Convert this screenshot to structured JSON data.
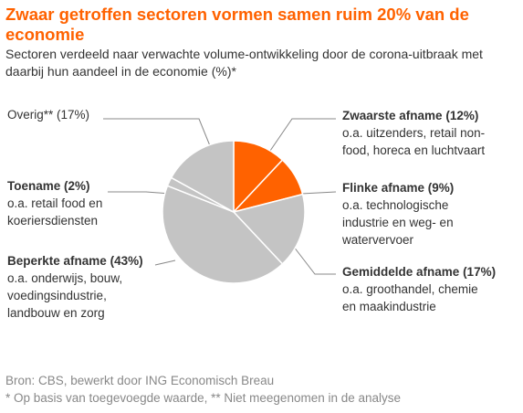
{
  "chart_data": {
    "type": "pie",
    "title": "Zwaar getroffen sectoren vormen samen ruim 20% van de economie",
    "subtitle": "Sectoren verdeeld naar verwachte volume-ontwikkeling door de corona-uitbraak met daarbij hun aandeel in de economie (%)*",
    "categories": [
      "Zwaarste afname",
      "Flinke afname",
      "Gemiddelde afname",
      "Beperkte afname",
      "Toename",
      "Overig**"
    ],
    "values": [
      12,
      9,
      17,
      43,
      2,
      17
    ],
    "value_labels": [
      "(12%)",
      "(9%)",
      "(17%)",
      "(43%)",
      "(2%)",
      "(17%)"
    ],
    "colors": [
      "#ff6200",
      "#ff6200",
      "#c4c4c4",
      "#c4c4c4",
      "#c4c4c4",
      "#c4c4c4"
    ],
    "descriptions": [
      [
        "o.a. uitzenders, retail non-",
        "food, horeca en luchtvaart"
      ],
      [
        "o.a. technologische",
        "industrie en weg- en",
        "watervervoer"
      ],
      [
        "o.a. groothandel, chemie",
        "en maakindustrie"
      ],
      [
        "o.a. onderwijs, bouw,",
        "voedingsindustrie,",
        "landbouw en zorg"
      ],
      [
        "o.a. retail food en",
        "koeriersdiensten"
      ],
      []
    ],
    "source": "Bron: CBS, bewerkt door ING Economisch Breau",
    "note": "* Op basis van toegevoegde waarde, ** Niet meegenomen in de analyse"
  }
}
